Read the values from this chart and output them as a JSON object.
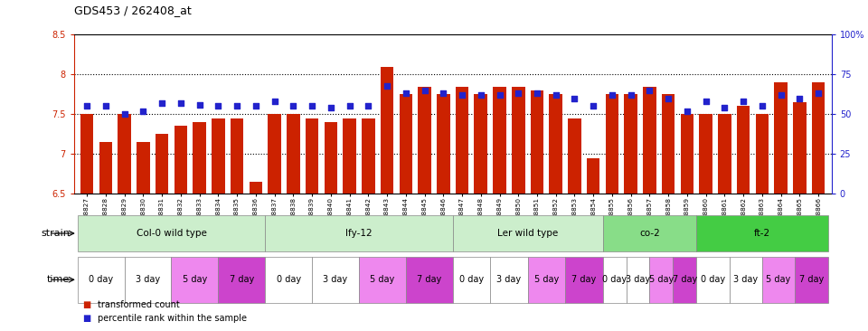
{
  "title": "GDS453 / 262408_at",
  "samples": [
    "GSM8827",
    "GSM8828",
    "GSM8829",
    "GSM8830",
    "GSM8831",
    "GSM8832",
    "GSM8833",
    "GSM8834",
    "GSM8835",
    "GSM8836",
    "GSM8837",
    "GSM8838",
    "GSM8839",
    "GSM8840",
    "GSM8841",
    "GSM8842",
    "GSM8843",
    "GSM8844",
    "GSM8845",
    "GSM8846",
    "GSM8847",
    "GSM8848",
    "GSM8849",
    "GSM8850",
    "GSM8851",
    "GSM8852",
    "GSM8853",
    "GSM8854",
    "GSM8855",
    "GSM8856",
    "GSM8857",
    "GSM8858",
    "GSM8859",
    "GSM8860",
    "GSM8861",
    "GSM8862",
    "GSM8863",
    "GSM8864",
    "GSM8865",
    "GSM8866"
  ],
  "bar_values": [
    7.5,
    7.15,
    7.5,
    7.15,
    7.25,
    7.35,
    7.4,
    7.45,
    7.45,
    6.65,
    7.5,
    7.5,
    7.45,
    7.4,
    7.45,
    7.45,
    8.1,
    7.75,
    7.85,
    7.75,
    7.85,
    7.75,
    7.85,
    7.85,
    7.8,
    7.75,
    7.45,
    6.95,
    7.75,
    7.75,
    7.85,
    7.75,
    7.5,
    7.5,
    7.5,
    7.6,
    7.5,
    7.9,
    7.65,
    7.9
  ],
  "percentile_values": [
    55,
    55,
    50,
    52,
    57,
    57,
    56,
    55,
    55,
    55,
    58,
    55,
    55,
    54,
    55,
    55,
    68,
    63,
    65,
    63,
    62,
    62,
    62,
    63,
    63,
    62,
    60,
    55,
    62,
    62,
    65,
    60,
    52,
    58,
    54,
    58,
    55,
    62,
    60,
    63
  ],
  "ylim": [
    6.5,
    8.5
  ],
  "yticks": [
    6.5,
    7.0,
    7.5,
    8.0,
    8.5
  ],
  "ytick_labels_left": [
    "6.5",
    "7",
    "7.5",
    "8",
    "8.5"
  ],
  "right_yticks": [
    0,
    25,
    50,
    75,
    100
  ],
  "right_ytick_labels": [
    "0",
    "25",
    "50",
    "75",
    "100%"
  ],
  "bar_color": "#cc2200",
  "percentile_color": "#2222cc",
  "hline_dotted": [
    7.0,
    7.5,
    8.0
  ],
  "bar_width": 0.7,
  "yaxis_left_color": "#cc2200",
  "yaxis_right_color": "#2222cc",
  "strain_defs": [
    {
      "label": "Col-0 wild type",
      "start": 0,
      "end": 9,
      "color": "#cceecc"
    },
    {
      "label": "lfy-12",
      "start": 10,
      "end": 19,
      "color": "#cceecc"
    },
    {
      "label": "Ler wild type",
      "start": 20,
      "end": 27,
      "color": "#cceecc"
    },
    {
      "label": "co-2",
      "start": 28,
      "end": 32,
      "color": "#88dd88"
    },
    {
      "label": "ft-2",
      "start": 33,
      "end": 39,
      "color": "#44cc44"
    }
  ],
  "time_colors": [
    "#ffffff",
    "#ffffff",
    "#ee88ee",
    "#cc44cc"
  ],
  "time_labels": [
    "0 day",
    "3 day",
    "5 day",
    "7 day"
  ]
}
